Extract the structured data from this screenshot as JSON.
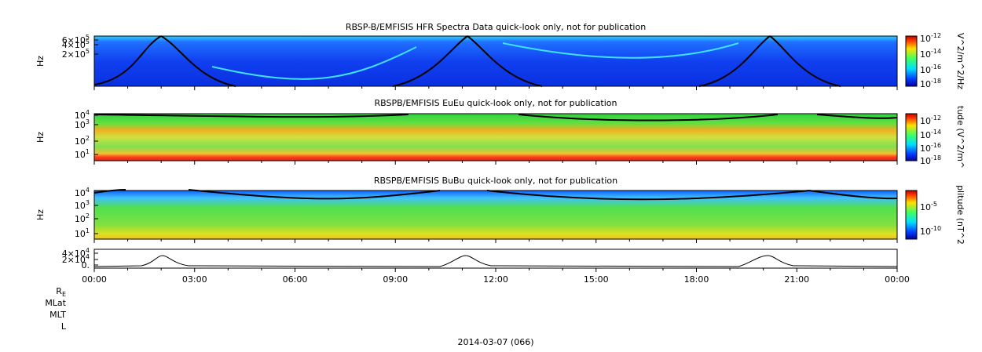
{
  "panels": [
    {
      "title": "RBSP-B/EMFISIS  HFR Spectra Data quick-look only, not for publication",
      "ylabel": "Hz",
      "yticks": [
        {
          "base": "6×10",
          "exp": "5"
        },
        {
          "base": "4×10",
          "exp": "5"
        },
        {
          "base": "2×10",
          "exp": "5"
        }
      ],
      "colorbar": {
        "label": "V^2/m^2/Hz",
        "ticks": [
          {
            "base": "10",
            "exp": "-12"
          },
          {
            "base": "10",
            "exp": "-14"
          },
          {
            "base": "10",
            "exp": "-16"
          },
          {
            "base": "10",
            "exp": "-18"
          }
        ]
      }
    },
    {
      "title": "RBSPB/EMFISIS  EuEu quick-look only, not for publication",
      "ylabel": "Hz",
      "yticks": [
        {
          "base": "10",
          "exp": "4"
        },
        {
          "base": "10",
          "exp": "3"
        },
        {
          "base": "10",
          "exp": "2"
        },
        {
          "base": "10",
          "exp": "1"
        }
      ],
      "colorbar": {
        "label": "tude (V^2/m^",
        "ticks": [
          {
            "base": "10",
            "exp": "-12"
          },
          {
            "base": "10",
            "exp": "-14"
          },
          {
            "base": "10",
            "exp": "-16"
          },
          {
            "base": "10",
            "exp": "-18"
          }
        ]
      }
    },
    {
      "title": "RBSPB/EMFISIS  BuBu quick-look only, not for publication",
      "ylabel": "Hz",
      "yticks": [
        {
          "base": "10",
          "exp": "4"
        },
        {
          "base": "10",
          "exp": "3"
        },
        {
          "base": "10",
          "exp": "2"
        },
        {
          "base": "10",
          "exp": "1"
        }
      ],
      "colorbar": {
        "label": "plitude (nT^2",
        "ticks": [
          {
            "base": "10",
            "exp": "-5"
          },
          {
            "base": "10",
            "exp": "-10"
          }
        ]
      }
    },
    {
      "yticks": [
        {
          "base": "4×10",
          "exp": "4"
        },
        {
          "base": "2×10",
          "exp": "4"
        },
        {
          "base": "0."
        }
      ]
    }
  ],
  "xticks": [
    "00:00",
    "03:00",
    "06:00",
    "09:00",
    "12:00",
    "15:00",
    "18:00",
    "21:00",
    "00:00"
  ],
  "rows": [
    {
      "text": "R",
      "sub": "E"
    },
    {
      "text": "MLat"
    },
    {
      "text": "MLT"
    },
    {
      "text": "L"
    }
  ],
  "footer": "2014-03-07 (066)"
}
